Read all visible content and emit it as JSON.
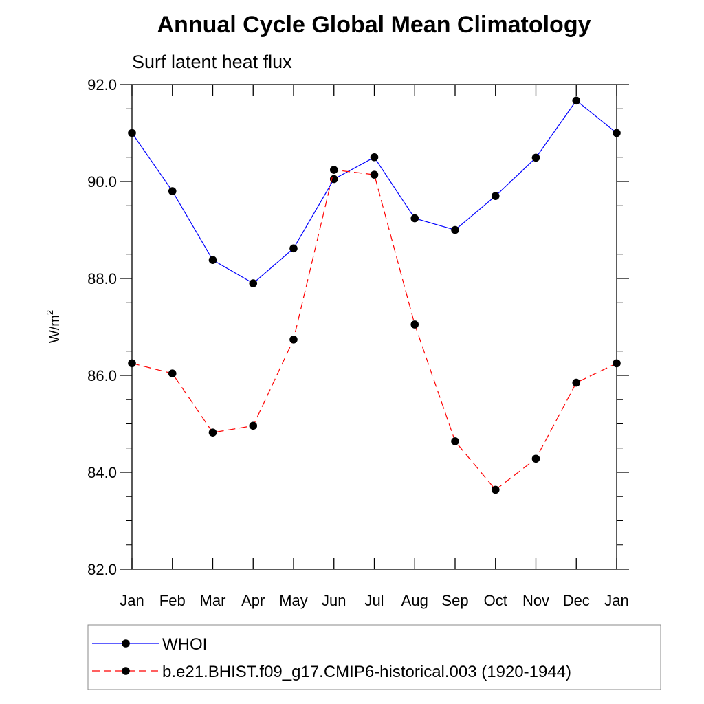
{
  "chart_data": {
    "type": "line",
    "title": "Annual Cycle Global Mean Climatology",
    "subtitle": "Surf latent heat flux",
    "ylabel": "W/m",
    "ylabel_sup": "2",
    "xlabel": "",
    "categories": [
      "Jan",
      "Feb",
      "Mar",
      "Apr",
      "May",
      "Jun",
      "Jul",
      "Aug",
      "Sep",
      "Oct",
      "Nov",
      "Dec",
      "Jan"
    ],
    "ylim": [
      82.0,
      92.0
    ],
    "yticks": [
      "82.0",
      "84.0",
      "86.0",
      "88.0",
      "90.0",
      "92.0"
    ],
    "grid": false,
    "legend_position": "bottom",
    "series": [
      {
        "name": "WHOI",
        "color": "#0000ff",
        "dash": "solid",
        "values": [
          91.0,
          89.8,
          88.38,
          87.9,
          88.62,
          90.05,
          90.5,
          89.24,
          89.0,
          89.7,
          90.49,
          91.67,
          91.0
        ]
      },
      {
        "name": "b.e21.BHIST.f09_g17.CMIP6-historical.003 (1920-1944)",
        "color": "#ff0000",
        "dash": "dashed",
        "values": [
          86.25,
          86.04,
          84.82,
          84.96,
          86.74,
          90.24,
          90.14,
          87.05,
          84.64,
          83.64,
          84.28,
          85.85,
          86.25
        ]
      }
    ]
  }
}
